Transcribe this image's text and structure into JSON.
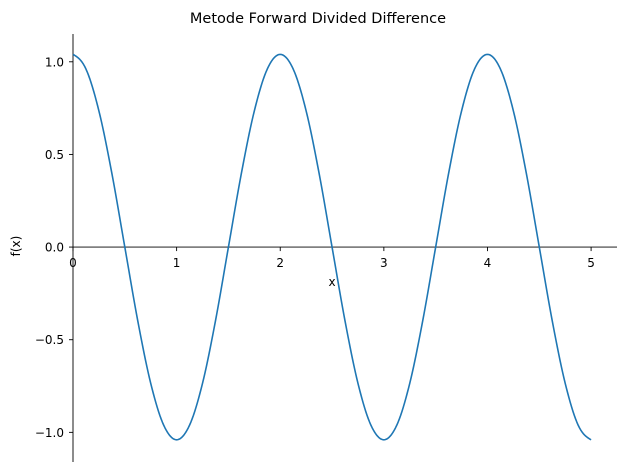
{
  "chart_data": {
    "type": "line",
    "title": "Metode Forward Divided Difference",
    "xlabel": "x",
    "ylabel": "f(x)",
    "xlim": [
      0,
      5.25
    ],
    "ylim": [
      -1.16,
      1.15
    ],
    "x_ticks": [
      0,
      1,
      2,
      3,
      4,
      5
    ],
    "x_tick_labels": [
      "0",
      "1",
      "2",
      "3",
      "4",
      "5"
    ],
    "y_ticks": [
      1.0,
      0.5,
      0.0,
      -0.5,
      -1.0
    ],
    "y_tick_labels": [
      "1.0",
      "0.5",
      "0.0",
      "−0.5",
      "−1.0"
    ],
    "grid": false,
    "spines": "centered at origin",
    "series": [
      {
        "color": "#1f77b4",
        "x": [
          0,
          0.125,
          0.25,
          0.375,
          0.5,
          0.625,
          0.75,
          0.875,
          1.0,
          1.125,
          1.25,
          1.375,
          1.5,
          1.625,
          1.75,
          1.875,
          2.0,
          2.125,
          2.25,
          2.375,
          2.5,
          2.625,
          2.75,
          2.875,
          3.0,
          3.125,
          3.25,
          3.375,
          3.5,
          3.625,
          3.75,
          3.875,
          4.0,
          4.125,
          4.25,
          4.375,
          4.5,
          4.625,
          4.75,
          4.875,
          5.0
        ],
        "y": [
          1.04,
          0.961,
          0.735,
          0.398,
          0.0,
          -0.398,
          -0.735,
          -0.961,
          -1.04,
          -0.961,
          -0.735,
          -0.398,
          0.0,
          0.398,
          0.735,
          0.961,
          1.04,
          0.961,
          0.735,
          0.398,
          0.0,
          -0.398,
          -0.735,
          -0.961,
          -1.04,
          -0.961,
          -0.735,
          -0.398,
          0.0,
          0.398,
          0.735,
          0.961,
          1.04,
          0.961,
          0.735,
          0.398,
          0.0,
          -0.398,
          -0.735,
          -0.961,
          -1.04
        ]
      }
    ]
  }
}
